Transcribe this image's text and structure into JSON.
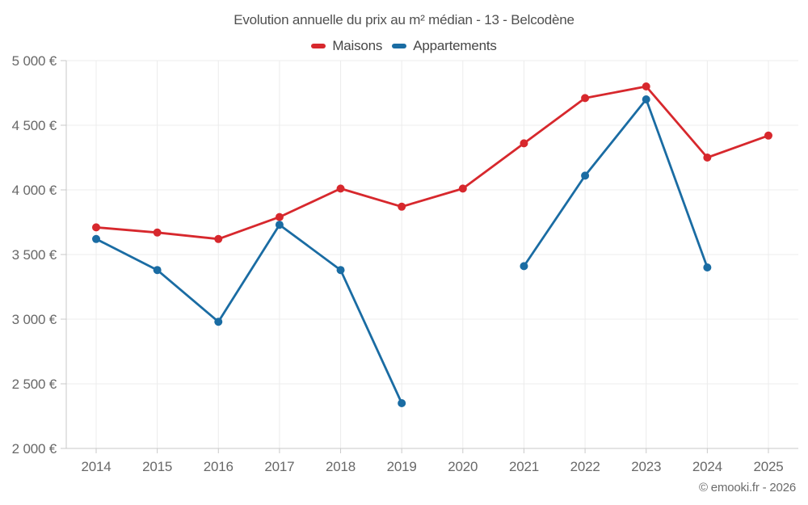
{
  "chart_data": {
    "type": "line",
    "title": "Evolution annuelle du prix au m² médian - 13 - Belcodène",
    "categories": [
      "2014",
      "2015",
      "2016",
      "2017",
      "2018",
      "2019",
      "2020",
      "2021",
      "2022",
      "2023",
      "2024",
      "2025"
    ],
    "series": [
      {
        "name": "Maisons",
        "color": "#d7282d",
        "values": [
          3710,
          3670,
          3620,
          3790,
          4010,
          3870,
          4010,
          4360,
          4710,
          4800,
          4250,
          4420
        ]
      },
      {
        "name": "Appartements",
        "color": "#1a6ca3",
        "values": [
          3620,
          3380,
          2980,
          3730,
          3380,
          2350,
          null,
          3410,
          4110,
          4700,
          3400,
          null
        ]
      }
    ],
    "y_axis": {
      "min": 2000,
      "max": 5000,
      "tick_step": 500,
      "tick_labels": [
        "2 000 €",
        "2 500 €",
        "3 000 €",
        "3 500 €",
        "4 000 €",
        "4 500 €",
        "5 000 €"
      ]
    },
    "xlabel": "",
    "ylabel": "",
    "legend_position": "top",
    "grid": true,
    "unit": "€"
  },
  "footer": {
    "copyright": "© emooki.fr - 2026"
  }
}
